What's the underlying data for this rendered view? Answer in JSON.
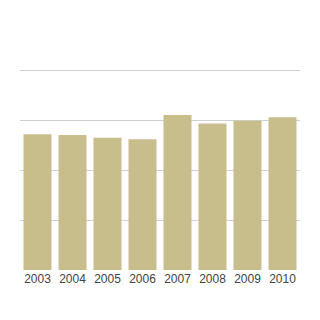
{
  "chart_data": {
    "type": "bar",
    "categories": [
      "2003",
      "2004",
      "2005",
      "2006",
      "2007",
      "2008",
      "2009",
      "2010"
    ],
    "values": [
      19.0,
      18.9,
      18.5,
      18.3,
      21.7,
      20.5,
      20.9,
      21.4
    ],
    "color": "#c8be8c",
    "ylim": [
      0,
      35
    ],
    "yticks": [
      0,
      7,
      14,
      21,
      28,
      35
    ],
    "grid": true,
    "tick_labels": "x"
  }
}
